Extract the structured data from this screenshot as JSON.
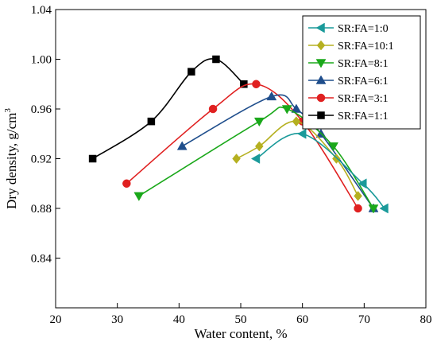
{
  "chart_data": {
    "type": "line",
    "title": "",
    "xlabel": "Water content, %",
    "ylabel_main": "Dry density, g/cm",
    "ylabel_sup": "3",
    "xlim": [
      20,
      80
    ],
    "ylim": [
      0.8,
      1.04
    ],
    "xticks": [
      20,
      30,
      40,
      50,
      60,
      70,
      80
    ],
    "yticks": [
      0.84,
      0.88,
      0.92,
      0.96,
      1.0,
      1.04
    ],
    "xtick_labels": [
      "20",
      "30",
      "40",
      "50",
      "60",
      "70",
      "80"
    ],
    "ytick_labels": [
      "0.84",
      "0.88",
      "0.92",
      "0.96",
      "1.00",
      "1.04"
    ],
    "grid": false,
    "legend_position": "top-right",
    "series": [
      {
        "name": "SR:FA=1:0",
        "color": "#1a9a9a",
        "marker": "triangle-left",
        "x": [
          52.5,
          60.0,
          69.8,
          73.3
        ],
        "y": [
          0.92,
          0.94,
          0.9,
          0.88
        ]
      },
      {
        "name": "SR:FA=10:1",
        "color": "#b5b020",
        "marker": "diamond",
        "x": [
          49.3,
          53.0,
          59.0,
          65.5,
          69.0
        ],
        "y": [
          0.92,
          0.93,
          0.95,
          0.92,
          0.89
        ]
      },
      {
        "name": "SR:FA=8:1",
        "color": "#1aa81a",
        "marker": "triangle-down",
        "x": [
          33.5,
          53.0,
          57.5,
          65.0,
          71.5
        ],
        "y": [
          0.89,
          0.95,
          0.96,
          0.93,
          0.88
        ]
      },
      {
        "name": "SR:FA=6:1",
        "color": "#1f4e8c",
        "marker": "triangle-up",
        "x": [
          40.5,
          55.0,
          59.0,
          63.0,
          71.5
        ],
        "y": [
          0.93,
          0.97,
          0.96,
          0.94,
          0.88
        ]
      },
      {
        "name": "SR:FA=3:1",
        "color": "#e02020",
        "marker": "circle",
        "x": [
          31.5,
          45.5,
          52.5,
          60.0,
          69.0
        ],
        "y": [
          0.9,
          0.96,
          0.98,
          0.95,
          0.88
        ]
      },
      {
        "name": "SR:FA=1:1",
        "color": "#000000",
        "marker": "square",
        "x": [
          26.0,
          35.5,
          42.0,
          46.0,
          50.5
        ],
        "y": [
          0.92,
          0.95,
          0.99,
          1.0,
          0.98
        ]
      }
    ]
  }
}
